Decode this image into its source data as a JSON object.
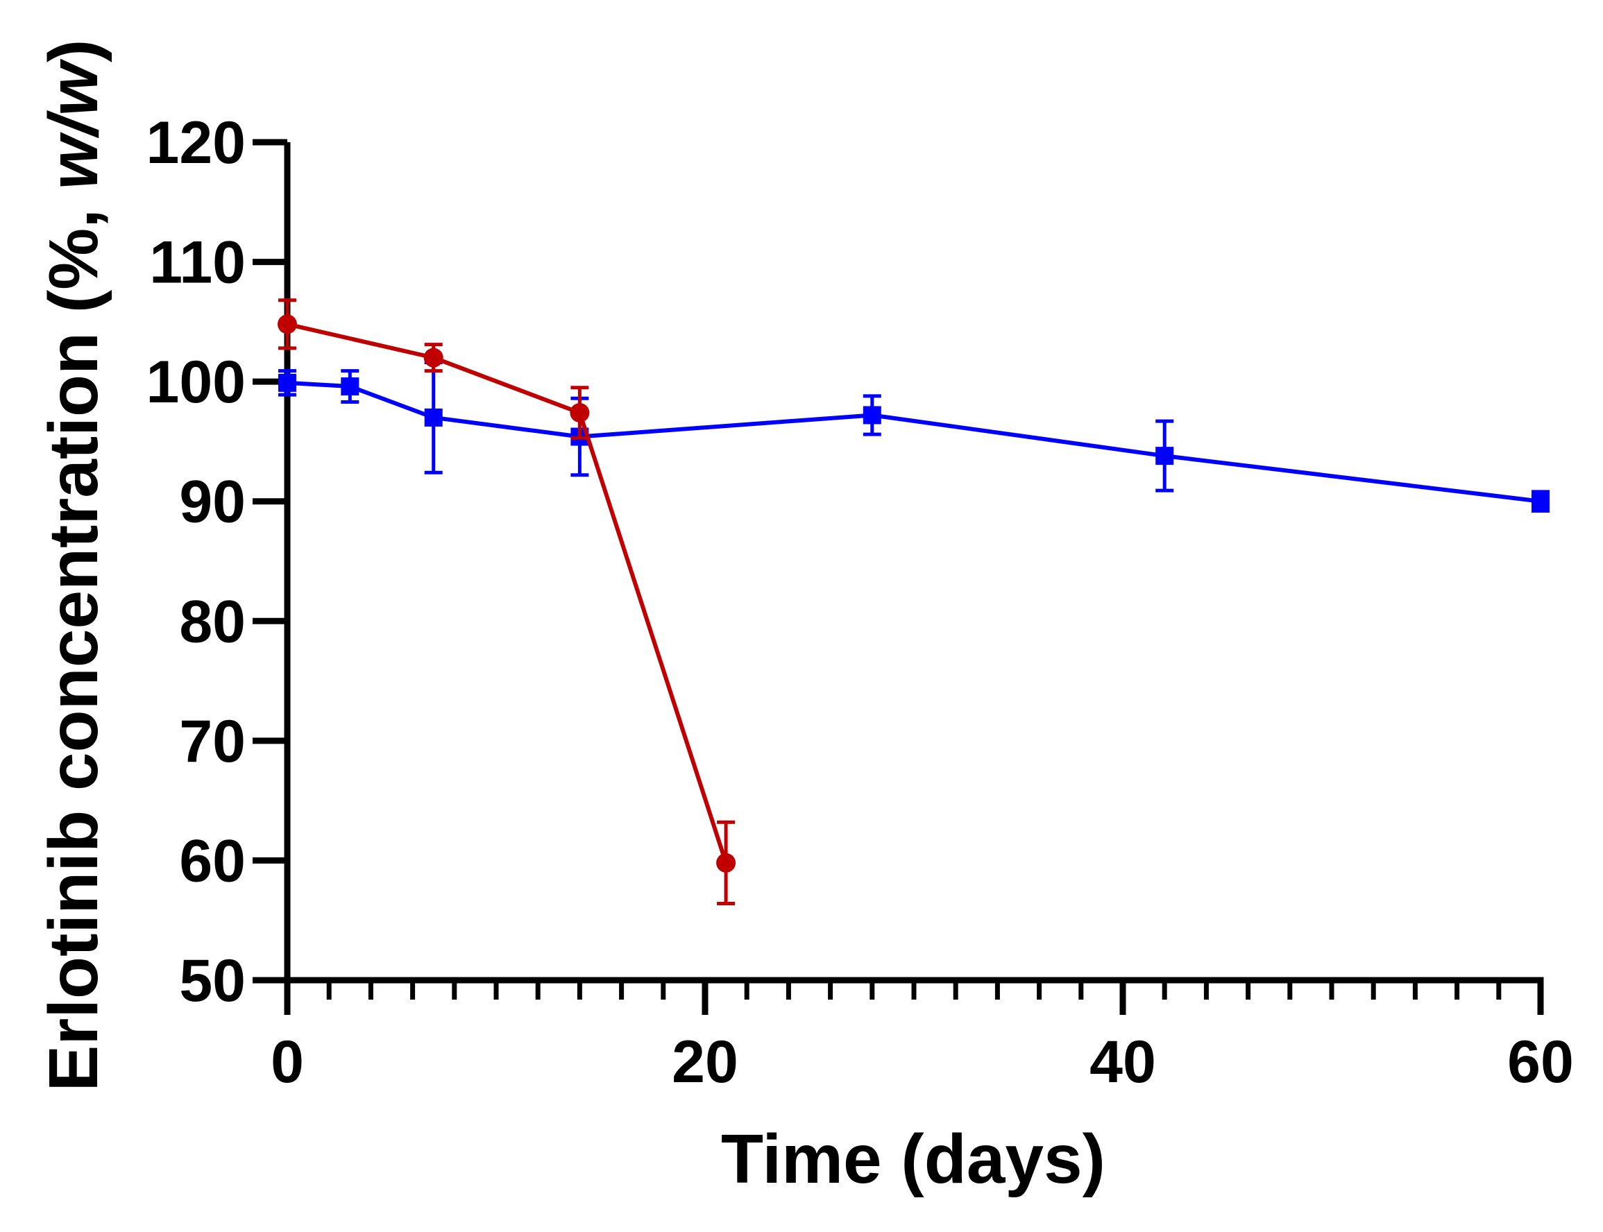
{
  "chart_data": {
    "type": "line",
    "title": "",
    "xlabel": "Time (days)",
    "ylabel_parts": [
      "Erlotinib concentration (%, ",
      "w/w",
      ")"
    ],
    "xlim": [
      0,
      60
    ],
    "ylim": [
      50,
      120
    ],
    "x_major_ticks": [
      0,
      20,
      40,
      60
    ],
    "x_minor_step": 2,
    "y_ticks": [
      50,
      60,
      70,
      80,
      90,
      100,
      110,
      120
    ],
    "grid": false,
    "legend": "none",
    "series": [
      {
        "name": "blue-series",
        "color": "#0000ff",
        "marker": "square",
        "x": [
          0,
          3,
          7,
          14,
          28,
          42,
          60
        ],
        "y": [
          99.9,
          99.6,
          97.0,
          95.4,
          97.2,
          93.8,
          90.0
        ],
        "err": [
          1.0,
          1.3,
          4.6,
          3.2,
          1.6,
          2.9,
          0.8
        ]
      },
      {
        "name": "red-series",
        "color": "#c00000",
        "marker": "circle",
        "x": [
          0,
          7,
          14,
          21
        ],
        "y": [
          104.8,
          102.0,
          97.4,
          59.8
        ],
        "err": [
          2.0,
          1.1,
          2.1,
          3.4
        ]
      }
    ]
  }
}
